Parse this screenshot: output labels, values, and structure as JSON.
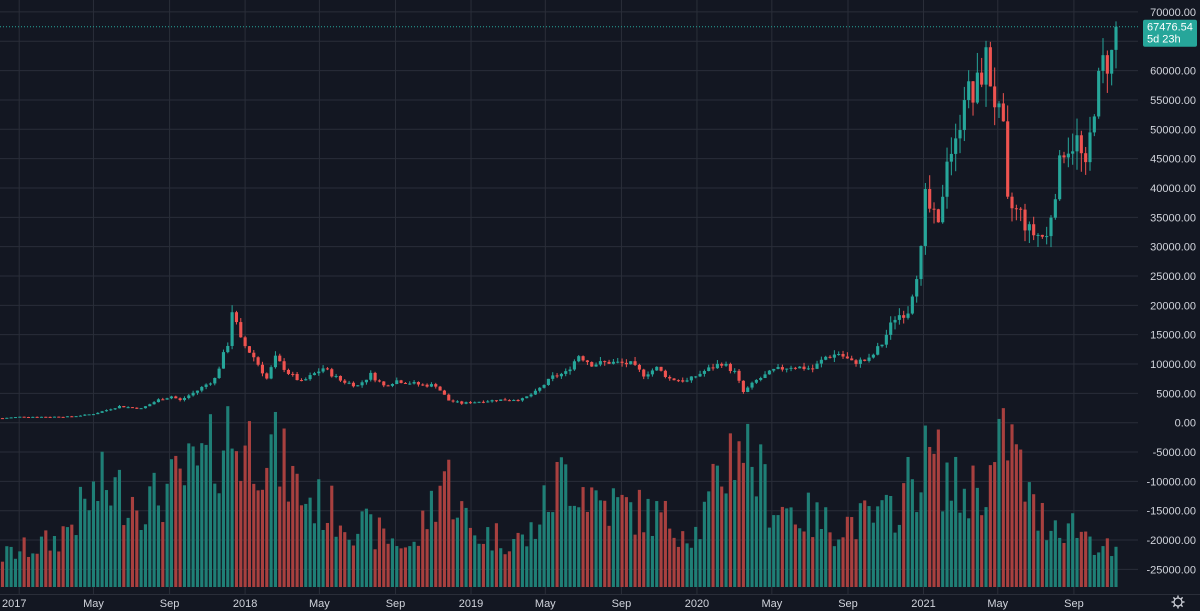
{
  "colors": {
    "background": "#131722",
    "grid": "#2a2e39",
    "text": "#d1d4dc",
    "up": "#26a69a",
    "down": "#ef5350",
    "up_volume": "#1f7f76",
    "down_volume": "#a8403f",
    "price_tag": "#26a69a"
  },
  "price_tag": {
    "value": "67476.54",
    "countdown": "5d 23h"
  },
  "settings_icon": "gear-icon",
  "chart_data": {
    "type": "candlestick",
    "interval": "1W",
    "x_range": [
      "2016-12-01",
      "2021-11-08"
    ],
    "ylim": [
      -28000,
      70500
    ],
    "grid": true,
    "y_ticks": [
      70000,
      65000,
      60000,
      55000,
      50000,
      45000,
      40000,
      35000,
      30000,
      25000,
      20000,
      15000,
      10000,
      5000,
      0,
      -5000,
      -10000,
      -15000,
      -20000,
      -25000
    ],
    "y_tick_labels": [
      "70000.00",
      "65000.00",
      "60000.00",
      "55000.00",
      "50000.00",
      "45000.00",
      "40000.00",
      "35000.00",
      "30000.00",
      "25000.00",
      "20000.00",
      "15000.00",
      "10000.00",
      "5000.00",
      "0.00",
      "-5000.00",
      "-10000.00",
      "-15000.00",
      "-20000.00",
      "-25000.00"
    ],
    "x_ticks": [
      {
        "date": "2017-01-01",
        "label": "2017"
      },
      {
        "date": "2017-05-01",
        "label": "May"
      },
      {
        "date": "2017-09-01",
        "label": "Sep"
      },
      {
        "date": "2018-01-01",
        "label": "2018"
      },
      {
        "date": "2018-05-01",
        "label": "May"
      },
      {
        "date": "2018-09-01",
        "label": "Sep"
      },
      {
        "date": "2019-01-01",
        "label": "2019"
      },
      {
        "date": "2019-05-01",
        "label": "May"
      },
      {
        "date": "2019-09-01",
        "label": "Sep"
      },
      {
        "date": "2020-01-01",
        "label": "2020"
      },
      {
        "date": "2020-05-01",
        "label": "May"
      },
      {
        "date": "2020-09-01",
        "label": "Sep"
      },
      {
        "date": "2021-01-01",
        "label": "2021"
      },
      {
        "date": "2021-05-01",
        "label": "May"
      },
      {
        "date": "2021-09-01",
        "label": "Sep"
      }
    ],
    "last_price": 67476.54,
    "volume_baseline": -28000,
    "price_anchors": [
      [
        "2016-12-05",
        780
      ],
      [
        "2017-01-02",
        1000
      ],
      [
        "2017-02-13",
        1000
      ],
      [
        "2017-03-27",
        1050
      ],
      [
        "2017-05-01",
        1500
      ],
      [
        "2017-06-12",
        2800
      ],
      [
        "2017-07-17",
        2400
      ],
      [
        "2017-08-14",
        3900
      ],
      [
        "2017-09-04",
        4500
      ],
      [
        "2017-09-18",
        3800
      ],
      [
        "2017-10-16",
        5500
      ],
      [
        "2017-11-13",
        7500
      ],
      [
        "2017-12-04",
        13500
      ],
      [
        "2017-12-11",
        19200
      ],
      [
        "2017-12-25",
        14000
      ],
      [
        "2018-01-15",
        11200
      ],
      [
        "2018-02-05",
        7500
      ],
      [
        "2018-02-19",
        11000
      ],
      [
        "2018-03-12",
        8500
      ],
      [
        "2018-04-02",
        6900
      ],
      [
        "2018-05-07",
        9300
      ],
      [
        "2018-06-04",
        7200
      ],
      [
        "2018-07-02",
        6300
      ],
      [
        "2018-07-23",
        8200
      ],
      [
        "2018-08-13",
        6300
      ],
      [
        "2018-09-03",
        7200
      ],
      [
        "2018-10-15",
        6400
      ],
      [
        "2018-11-05",
        6400
      ],
      [
        "2018-11-26",
        3800
      ],
      [
        "2018-12-17",
        3300
      ],
      [
        "2019-01-14",
        3600
      ],
      [
        "2019-02-18",
        3900
      ],
      [
        "2019-03-25",
        4000
      ],
      [
        "2019-04-15",
        5200
      ],
      [
        "2019-05-13",
        7800
      ],
      [
        "2019-06-03",
        8500
      ],
      [
        "2019-06-24",
        11500
      ],
      [
        "2019-07-15",
        10000
      ],
      [
        "2019-08-12",
        10300
      ],
      [
        "2019-09-16",
        10000
      ],
      [
        "2019-10-07",
        8200
      ],
      [
        "2019-10-28",
        9300
      ],
      [
        "2019-11-18",
        7500
      ],
      [
        "2019-12-16",
        7100
      ],
      [
        "2020-01-13",
        8800
      ],
      [
        "2020-02-10",
        10200
      ],
      [
        "2020-03-02",
        8600
      ],
      [
        "2020-03-16",
        5200
      ],
      [
        "2020-04-06",
        7200
      ],
      [
        "2020-05-04",
        8900
      ],
      [
        "2020-06-01",
        9600
      ],
      [
        "2020-07-06",
        9200
      ],
      [
        "2020-07-27",
        11200
      ],
      [
        "2020-08-17",
        11800
      ],
      [
        "2020-09-07",
        10300
      ],
      [
        "2020-10-05",
        10700
      ],
      [
        "2020-10-26",
        13500
      ],
      [
        "2020-11-16",
        18000
      ],
      [
        "2020-12-07",
        19200
      ],
      [
        "2020-12-28",
        29000
      ],
      [
        "2021-01-04",
        38000
      ],
      [
        "2021-01-25",
        33000
      ],
      [
        "2021-02-08",
        46000
      ],
      [
        "2021-02-22",
        47000
      ],
      [
        "2021-03-08",
        57000
      ],
      [
        "2021-03-22",
        55000
      ],
      [
        "2021-04-12",
        62000
      ],
      [
        "2021-04-26",
        55000
      ],
      [
        "2021-05-10",
        49000
      ],
      [
        "2021-05-17",
        37000
      ],
      [
        "2021-06-07",
        35500
      ],
      [
        "2021-06-21",
        32500
      ],
      [
        "2021-07-19",
        31500
      ],
      [
        "2021-08-02",
        40000
      ],
      [
        "2021-08-16",
        47000
      ],
      [
        "2021-09-06",
        48000
      ],
      [
        "2021-09-20",
        42500
      ],
      [
        "2021-10-04",
        54500
      ],
      [
        "2021-10-18",
        61000
      ],
      [
        "2021-11-01",
        62500
      ],
      [
        "2021-11-08",
        67476
      ]
    ],
    "volume_anchors": [
      [
        "2016-12-05",
        0.2
      ],
      [
        "2017-03-01",
        0.3
      ],
      [
        "2017-05-15",
        0.65
      ],
      [
        "2017-08-01",
        0.55
      ],
      [
        "2017-11-01",
        0.8
      ],
      [
        "2017-12-04",
        1.0
      ],
      [
        "2017-12-25",
        0.9
      ],
      [
        "2018-02-05",
        0.95
      ],
      [
        "2018-04-01",
        0.6
      ],
      [
        "2018-07-01",
        0.4
      ],
      [
        "2018-10-01",
        0.25
      ],
      [
        "2018-11-19",
        0.75
      ],
      [
        "2019-01-01",
        0.35
      ],
      [
        "2019-04-01",
        0.3
      ],
      [
        "2019-06-01",
        0.75
      ],
      [
        "2019-08-01",
        0.55
      ],
      [
        "2019-11-01",
        0.45
      ],
      [
        "2020-01-01",
        0.35
      ],
      [
        "2020-03-09",
        1.0
      ],
      [
        "2020-05-01",
        0.55
      ],
      [
        "2020-08-01",
        0.4
      ],
      [
        "2020-11-01",
        0.45
      ],
      [
        "2021-01-11",
        0.85
      ],
      [
        "2021-03-01",
        0.6
      ],
      [
        "2021-04-19",
        0.7
      ],
      [
        "2021-05-17",
        1.0
      ],
      [
        "2021-07-01",
        0.45
      ],
      [
        "2021-09-01",
        0.4
      ],
      [
        "2021-11-08",
        0.2
      ]
    ]
  }
}
